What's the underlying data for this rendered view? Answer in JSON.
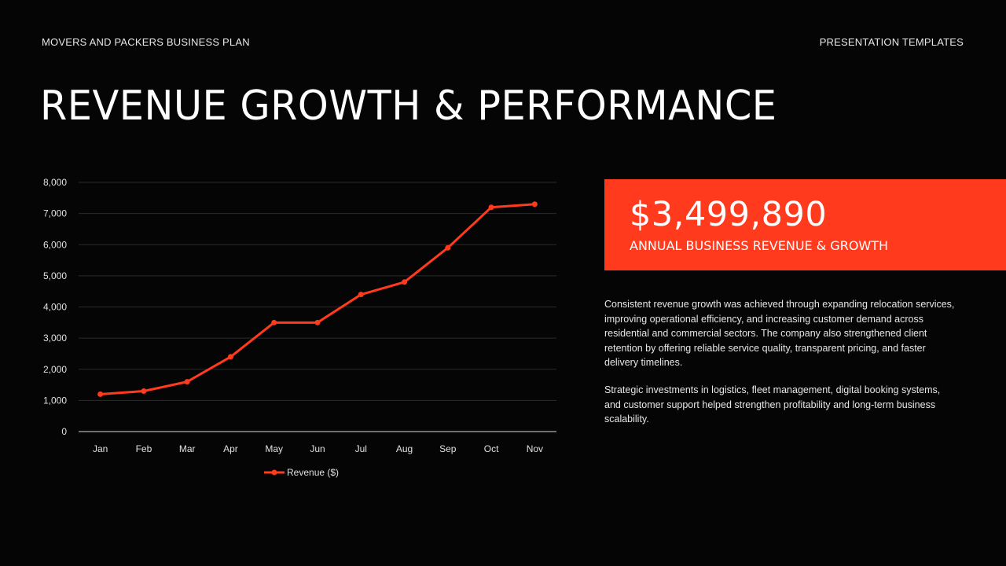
{
  "header": {
    "left": "MOVERS AND PACKERS BUSINESS PLAN",
    "right": "PRESENTATION TEMPLATES"
  },
  "title": "REVENUE GROWTH & PERFORMANCE",
  "kpi": {
    "value": "$3,499,890",
    "label": "ANNUAL BUSINESS REVENUE & GROWTH",
    "background_color": "#ff3a1d"
  },
  "body": {
    "paragraph1": "Consistent revenue growth was achieved through expanding relocation services, improving operational efficiency, and increasing customer demand across residential and commercial sectors. The company also strengthened client retention by offering reliable service quality, transparent pricing, and faster delivery timelines.",
    "paragraph2": "Strategic investments in logistics, fleet management, digital booking systems, and customer support helped strengthen profitability and long-term business scalability."
  },
  "chart_data": {
    "type": "line",
    "categories": [
      "Jan",
      "Feb",
      "Mar",
      "Apr",
      "May",
      "Jun",
      "Jul",
      "Aug",
      "Sep",
      "Oct",
      "Nov"
    ],
    "series": [
      {
        "name": "Revenue ($)",
        "values": [
          1200,
          1300,
          1600,
          2400,
          3500,
          3500,
          4400,
          4800,
          5900,
          7200,
          7300
        ],
        "color": "#ff3a1d"
      }
    ],
    "ylim": [
      0,
      8000
    ],
    "yticks": [
      0,
      1000,
      2000,
      3000,
      4000,
      5000,
      6000,
      7000,
      8000
    ],
    "ytick_labels": [
      "0",
      "1,000",
      "2,000",
      "3,000",
      "4,000",
      "5,000",
      "6,000",
      "7,000",
      "8,000"
    ],
    "grid": true,
    "legend_position": "bottom"
  }
}
